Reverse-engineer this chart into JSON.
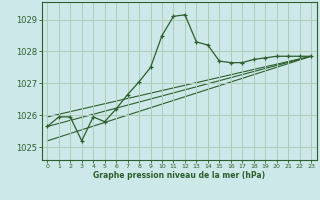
{
  "bg_color": "#cce8e8",
  "grid_color": "#b0ccb8",
  "line_color": "#2d5e2d",
  "xlabel": "Graphe pression niveau de la mer (hPa)",
  "xlabel_color": "#2d5e2d",
  "xlim": [
    -0.5,
    23.5
  ],
  "ylim": [
    1024.6,
    1029.55
  ],
  "yticks": [
    1025,
    1026,
    1027,
    1028,
    1029
  ],
  "xticks": [
    0,
    1,
    2,
    3,
    4,
    5,
    6,
    7,
    8,
    9,
    10,
    11,
    12,
    13,
    14,
    15,
    16,
    17,
    18,
    19,
    20,
    21,
    22,
    23
  ],
  "series1_x": [
    0,
    1,
    2,
    3,
    4,
    5,
    6,
    7,
    8,
    9,
    10,
    11,
    12,
    13,
    14,
    15,
    16,
    17,
    18,
    19,
    20,
    21,
    22,
    23
  ],
  "series1_y": [
    1025.65,
    1025.95,
    1025.95,
    1025.2,
    1025.95,
    1025.8,
    1026.2,
    1026.65,
    1027.05,
    1027.5,
    1028.5,
    1029.1,
    1029.15,
    1028.3,
    1028.2,
    1027.7,
    1027.65,
    1027.65,
    1027.75,
    1027.8,
    1027.85,
    1027.85,
    1027.85,
    1027.85
  ],
  "series2_x": [
    0,
    23
  ],
  "series2_y": [
    1025.65,
    1027.85
  ],
  "series3_x": [
    0,
    23
  ],
  "series3_y": [
    1025.95,
    1027.85
  ],
  "series4_x": [
    0,
    23
  ],
  "series4_y": [
    1025.2,
    1027.85
  ]
}
